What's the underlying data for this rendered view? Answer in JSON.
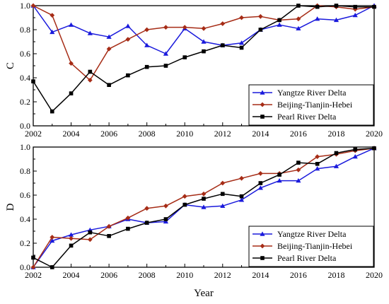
{
  "chart_data": [
    {
      "type": "line",
      "ylabel": "C",
      "xlabel": "",
      "xlim": [
        2002,
        2020
      ],
      "ylim": [
        0.0,
        1.0
      ],
      "x_ticks": [
        "2002",
        "2004",
        "2006",
        "2008",
        "2010",
        "2012",
        "2014",
        "2016",
        "2018",
        "2020"
      ],
      "y_ticks": [
        "0.0",
        "0.2",
        "0.4",
        "0.6",
        "0.8",
        "1.0"
      ],
      "x": [
        2002,
        2003,
        2004,
        2005,
        2006,
        2007,
        2008,
        2009,
        2010,
        2011,
        2012,
        2013,
        2014,
        2015,
        2016,
        2017,
        2018,
        2019,
        2020
      ],
      "legend_position": "bottom-right",
      "series": [
        {
          "name": "Yangtze River Delta",
          "color": "#1a1adc",
          "marker": "triangle",
          "values": [
            1.0,
            0.78,
            0.84,
            0.77,
            0.74,
            0.83,
            0.67,
            0.6,
            0.81,
            0.7,
            0.67,
            0.69,
            0.8,
            0.84,
            0.81,
            0.89,
            0.88,
            0.92,
            1.0
          ]
        },
        {
          "name": "Beijing-Tianjin-Hebei",
          "color": "#a62c16",
          "marker": "diamond",
          "values": [
            1.0,
            0.92,
            0.52,
            0.38,
            0.64,
            0.72,
            0.8,
            0.82,
            0.82,
            0.81,
            0.85,
            0.9,
            0.91,
            0.88,
            0.89,
            1.0,
            0.99,
            0.97,
            0.99
          ]
        },
        {
          "name": "Pearl River Delta",
          "color": "#000000",
          "marker": "square",
          "values": [
            0.37,
            0.12,
            0.27,
            0.45,
            0.34,
            0.42,
            0.49,
            0.5,
            0.57,
            0.62,
            0.67,
            0.65,
            0.8,
            0.88,
            1.0,
            0.99,
            1.0,
            0.99,
            0.99
          ]
        }
      ]
    },
    {
      "type": "line",
      "ylabel": "D",
      "xlabel": "Year",
      "xlim": [
        2002,
        2020
      ],
      "ylim": [
        0.0,
        1.0
      ],
      "x_ticks": [
        "2002",
        "2004",
        "2006",
        "2008",
        "2010",
        "2012",
        "2014",
        "2016",
        "2018",
        "2020"
      ],
      "y_ticks": [
        "0.0",
        "0.2",
        "0.4",
        "0.6",
        "0.8",
        "1.0"
      ],
      "x": [
        2002,
        2003,
        2004,
        2005,
        2006,
        2007,
        2008,
        2009,
        2010,
        2011,
        2012,
        2013,
        2014,
        2015,
        2016,
        2017,
        2018,
        2019,
        2020
      ],
      "legend_position": "bottom-right",
      "series": [
        {
          "name": "Yangtze River Delta",
          "color": "#1a1adc",
          "marker": "triangle",
          "values": [
            0.0,
            0.22,
            0.27,
            0.31,
            0.34,
            0.4,
            0.37,
            0.38,
            0.52,
            0.5,
            0.51,
            0.56,
            0.66,
            0.72,
            0.72,
            0.82,
            0.84,
            0.92,
            0.99
          ]
        },
        {
          "name": "Beijing-Tianjin-Hebei",
          "color": "#a62c16",
          "marker": "diamond",
          "values": [
            0.0,
            0.25,
            0.24,
            0.23,
            0.34,
            0.41,
            0.49,
            0.51,
            0.59,
            0.61,
            0.7,
            0.74,
            0.78,
            0.78,
            0.81,
            0.92,
            0.94,
            0.97,
            0.99
          ]
        },
        {
          "name": "Pearl River Delta",
          "color": "#000000",
          "marker": "square",
          "values": [
            0.08,
            0.0,
            0.18,
            0.29,
            0.26,
            0.32,
            0.37,
            0.4,
            0.52,
            0.57,
            0.61,
            0.59,
            0.7,
            0.77,
            0.87,
            0.86,
            0.95,
            0.98,
            0.99
          ]
        }
      ]
    }
  ]
}
